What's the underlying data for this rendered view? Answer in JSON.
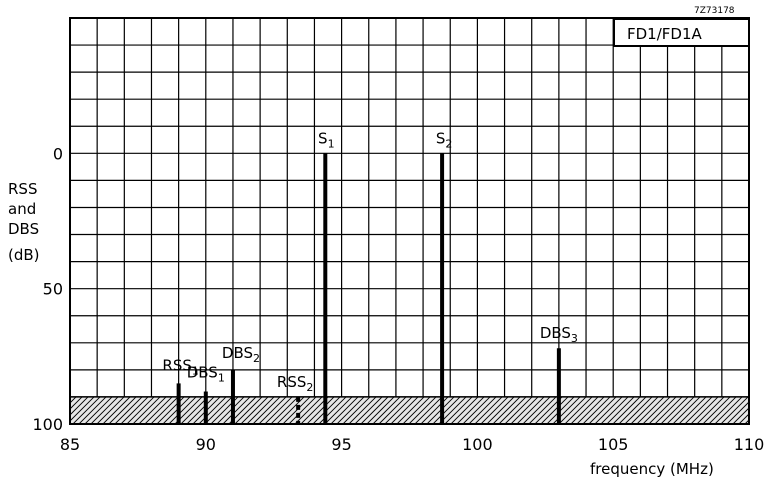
{
  "figure_ref": "7Z73178",
  "panel_tag": "FD1/FD1A",
  "chart_data": {
    "type": "bar",
    "xlabel": "frequency (MHz)",
    "ylabel_lines": [
      "RSS",
      "and",
      "DBS",
      "(dB)"
    ],
    "xlim": [
      85,
      110
    ],
    "ylim": [
      100,
      -50
    ],
    "y_inverted": true,
    "x_ticks": [
      85,
      90,
      95,
      100,
      105,
      110
    ],
    "y_ticks": [
      0,
      50,
      100
    ],
    "grid": true,
    "shaded_band": [
      90,
      100
    ],
    "spectral_lines": [
      {
        "name": "RSS",
        "sub": "1",
        "x": 89.0,
        "y": 85
      },
      {
        "name": "DBS",
        "sub": "1",
        "x": 90.0,
        "y": 88
      },
      {
        "name": "DBS",
        "sub": "2",
        "x": 91.0,
        "y": 80
      },
      {
        "name": "RSS",
        "sub": "2",
        "x": 93.4,
        "y": 90
      },
      {
        "name": "S",
        "sub": "1",
        "x": 94.4,
        "y": 0
      },
      {
        "name": "S",
        "sub": "2",
        "x": 98.7,
        "y": 0
      },
      {
        "name": "DBS",
        "sub": "3",
        "x": 103.0,
        "y": 72
      }
    ]
  }
}
